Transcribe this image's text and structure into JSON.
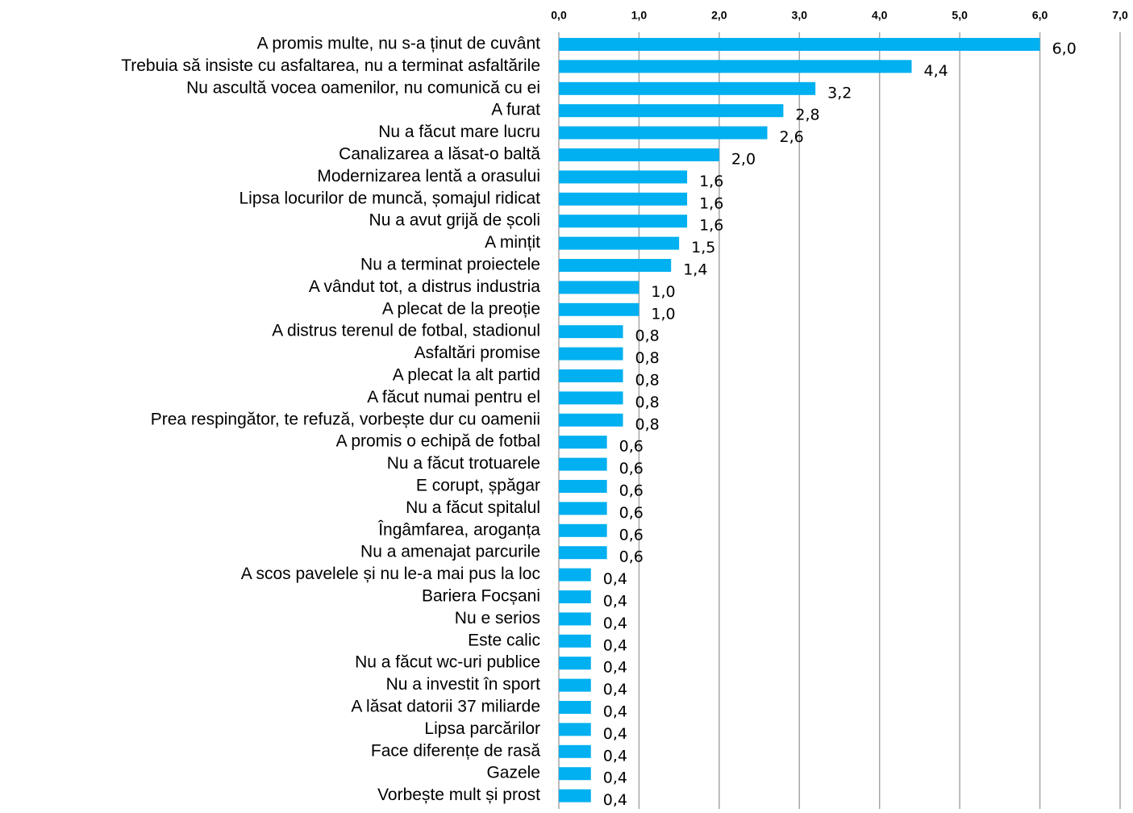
{
  "chart_data": {
    "type": "bar",
    "orientation": "horizontal",
    "color": "#00b0f0",
    "grid": true,
    "categories": [
      "A promis multe, nu s-a ținut de cuvânt",
      "Trebuia să insiste cu asfaltarea, nu a terminat asfaltările",
      "Nu ascultă vocea oamenilor, nu comunică cu ei",
      "A furat",
      "Nu a făcut mare lucru",
      "Canalizarea a lăsat-o baltă",
      "Modernizarea lentă a orasului",
      "Lipsa locurilor de muncă, șomajul ridicat",
      "Nu a avut grijă de școli",
      "A mințit",
      "Nu a terminat proiectele",
      "A vândut tot, a distrus industria",
      "A plecat de la preoție",
      "A distrus terenul de fotbal, stadionul",
      "Asfaltări promise",
      "A plecat la alt partid",
      "A făcut numai pentru el",
      "Prea respingător, te refuză, vorbește dur cu oamenii",
      "A promis o echipă de fotbal",
      "Nu a făcut trotuarele",
      "E corupt, șpăgar",
      "Nu a făcut spitalul",
      "Îngâmfarea, aroganța",
      "Nu a amenajat parcurile",
      "A scos pavelele și nu le-a mai pus la loc",
      "Bariera Focșani",
      "Nu e serios",
      "Este calic",
      "Nu a făcut wc-uri publice",
      "Nu a investit în sport",
      "A lăsat datorii 37 miliarde",
      "Lipsa parcărilor",
      "Face diferențe de rasă",
      "Gazele",
      "Vorbește mult și prost"
    ],
    "values": [
      6.0,
      4.4,
      3.2,
      2.8,
      2.6,
      2.0,
      1.6,
      1.6,
      1.6,
      1.5,
      1.4,
      1.0,
      1.0,
      0.8,
      0.8,
      0.8,
      0.8,
      0.8,
      0.6,
      0.6,
      0.6,
      0.6,
      0.6,
      0.6,
      0.4,
      0.4,
      0.4,
      0.4,
      0.4,
      0.4,
      0.4,
      0.4,
      0.4,
      0.4,
      0.4
    ],
    "value_labels": [
      "6,0",
      "4,4",
      "3,2",
      "2,8",
      "2,6",
      "2,0",
      "1,6",
      "1,6",
      "1,6",
      "1,5",
      "1,4",
      "1,0",
      "1,0",
      "0,8",
      "0,8",
      "0,8",
      "0,8",
      "0,8",
      "0,6",
      "0,6",
      "0,6",
      "0,6",
      "0,6",
      "0,6",
      "0,4",
      "0,4",
      "0,4",
      "0,4",
      "0,4",
      "0,4",
      "0,4",
      "0,4",
      "0,4",
      "0,4",
      "0,4"
    ],
    "xlim": [
      0,
      7
    ],
    "xticks": [
      {
        "value": 0,
        "label": "0,0"
      },
      {
        "value": 1,
        "label": "1,0"
      },
      {
        "value": 2,
        "label": "2,0"
      },
      {
        "value": 3,
        "label": "3,0"
      },
      {
        "value": 4,
        "label": "4,0"
      },
      {
        "value": 5,
        "label": "5,0"
      },
      {
        "value": 6,
        "label": "6,0"
      },
      {
        "value": 7,
        "label": "7,0"
      }
    ]
  }
}
